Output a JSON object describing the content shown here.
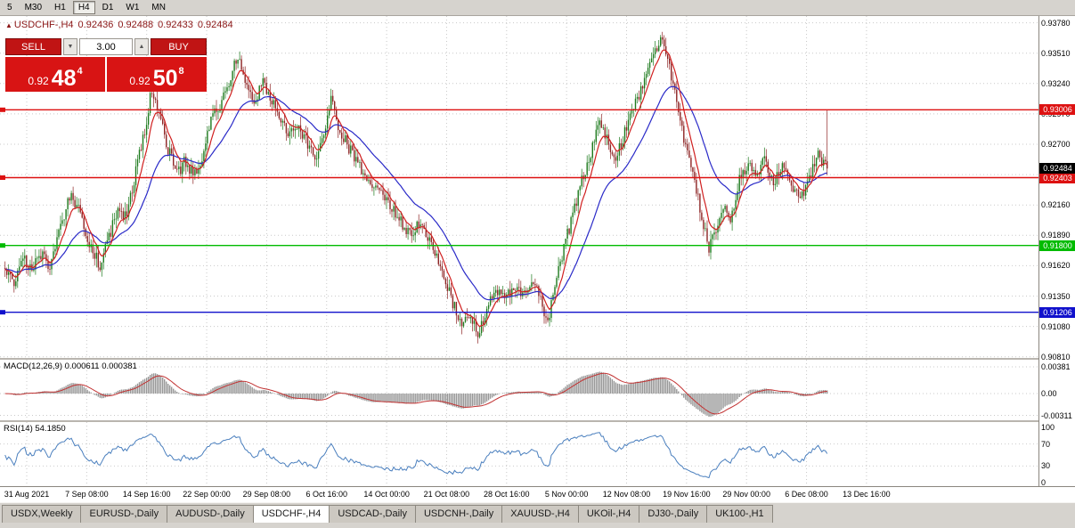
{
  "toolbar": {
    "timeframes": [
      {
        "label": "5",
        "active": false
      },
      {
        "label": "M30",
        "active": false
      },
      {
        "label": "H1",
        "active": false
      },
      {
        "label": "H4",
        "active": true
      },
      {
        "label": "D1",
        "active": false
      },
      {
        "label": "W1",
        "active": false
      },
      {
        "label": "MN",
        "active": false
      }
    ]
  },
  "chart_header": {
    "marker": "▲",
    "symbol": "USDCHF-,H4",
    "open": "0.92436",
    "high": "0.92488",
    "low": "0.92433",
    "close": "0.92484"
  },
  "trade_panel": {
    "sell_label": "SELL",
    "buy_label": "BUY",
    "volume": "3.00",
    "spinner_down": "▼",
    "spinner_up": "▲",
    "sell_price_small": "0.92",
    "sell_price_big": "48",
    "sell_price_sup": "4",
    "buy_price_small": "0.92",
    "buy_price_big": "50",
    "buy_price_sup": "8",
    "button_color": "#c01414",
    "price_color": "#d81414"
  },
  "chart_data": {
    "type": "candlestick",
    "symbol": "USDCHF",
    "timeframe": "H4",
    "price_axis": {
      "min": 0.908,
      "max": 0.9384,
      "ticks": [
        0.9378,
        0.9351,
        0.9324,
        0.9297,
        0.927,
        0.9243,
        0.9216,
        0.9189,
        0.9162,
        0.9135,
        0.9108,
        0.9081
      ]
    },
    "time_axis": {
      "labels": [
        "31 Aug 2021",
        "7 Sep 08:00",
        "14 Sep 16:00",
        "22 Sep 00:00",
        "29 Sep 08:00",
        "6 Oct 16:00",
        "14 Oct 00:00",
        "21 Oct 08:00",
        "28 Oct 16:00",
        "5 Nov 00:00",
        "12 Nov 08:00",
        "19 Nov 16:00",
        "29 Nov 00:00",
        "6 Dec 08:00",
        "13 Dec 16:00"
      ]
    },
    "hlines": [
      {
        "price": 0.93006,
        "label": "0.93006",
        "color": "#dd1111"
      },
      {
        "price": 0.92403,
        "label": "0.92403",
        "color": "#dd1111"
      },
      {
        "price": 0.918,
        "label": "0.91800",
        "color": "#00bb00"
      },
      {
        "price": 0.91206,
        "label": "0.91206",
        "color": "#1111cc"
      }
    ],
    "current_price": {
      "price": 0.92484,
      "label": "0.92484",
      "bg": "#000000"
    },
    "candles": {
      "count": 460,
      "up_color": "#1d7a1d",
      "down_color": "#8d2424",
      "last_high": 0.93,
      "anchors": [
        [
          0.0,
          0.916
        ],
        [
          0.011,
          0.9149
        ],
        [
          0.022,
          0.917
        ],
        [
          0.032,
          0.9158
        ],
        [
          0.043,
          0.9173
        ],
        [
          0.054,
          0.9163
        ],
        [
          0.065,
          0.919
        ],
        [
          0.079,
          0.9223
        ],
        [
          0.092,
          0.921
        ],
        [
          0.103,
          0.918
        ],
        [
          0.116,
          0.9162
        ],
        [
          0.126,
          0.9186
        ],
        [
          0.137,
          0.9212
        ],
        [
          0.148,
          0.9204
        ],
        [
          0.159,
          0.9247
        ],
        [
          0.17,
          0.9282
        ],
        [
          0.178,
          0.9318
        ],
        [
          0.187,
          0.9298
        ],
        [
          0.198,
          0.9266
        ],
        [
          0.209,
          0.9243
        ],
        [
          0.219,
          0.9256
        ],
        [
          0.23,
          0.9241
        ],
        [
          0.241,
          0.9262
        ],
        [
          0.252,
          0.9294
        ],
        [
          0.263,
          0.9308
        ],
        [
          0.274,
          0.933
        ],
        [
          0.283,
          0.9351
        ],
        [
          0.292,
          0.9321
        ],
        [
          0.303,
          0.9309
        ],
        [
          0.314,
          0.9324
        ],
        [
          0.324,
          0.9309
        ],
        [
          0.335,
          0.9291
        ],
        [
          0.346,
          0.928
        ],
        [
          0.357,
          0.9286
        ],
        [
          0.368,
          0.9271
        ],
        [
          0.378,
          0.9259
        ],
        [
          0.389,
          0.9276
        ],
        [
          0.397,
          0.9312
        ],
        [
          0.405,
          0.9286
        ],
        [
          0.416,
          0.927
        ],
        [
          0.427,
          0.9256
        ],
        [
          0.44,
          0.9241
        ],
        [
          0.453,
          0.923
        ],
        [
          0.466,
          0.9219
        ],
        [
          0.479,
          0.9203
        ],
        [
          0.492,
          0.9191
        ],
        [
          0.505,
          0.9199
        ],
        [
          0.518,
          0.9181
        ],
        [
          0.531,
          0.9161
        ],
        [
          0.544,
          0.9131
        ],
        [
          0.555,
          0.9106
        ],
        [
          0.565,
          0.9119
        ],
        [
          0.576,
          0.91
        ],
        [
          0.587,
          0.9126
        ],
        [
          0.598,
          0.9141
        ],
        [
          0.609,
          0.9131
        ],
        [
          0.619,
          0.9146
        ],
        [
          0.63,
          0.9136
        ],
        [
          0.641,
          0.9151
        ],
        [
          0.652,
          0.9136
        ],
        [
          0.659,
          0.911
        ],
        [
          0.67,
          0.9146
        ],
        [
          0.681,
          0.9181
        ],
        [
          0.692,
          0.9211
        ],
        [
          0.703,
          0.9241
        ],
        [
          0.714,
          0.9266
        ],
        [
          0.724,
          0.9291
        ],
        [
          0.733,
          0.9271
        ],
        [
          0.743,
          0.9256
        ],
        [
          0.754,
          0.9281
        ],
        [
          0.764,
          0.9301
        ],
        [
          0.775,
          0.9321
        ],
        [
          0.786,
          0.9341
        ],
        [
          0.797,
          0.9366
        ],
        [
          0.805,
          0.9346
        ],
        [
          0.814,
          0.9321
        ],
        [
          0.823,
          0.9286
        ],
        [
          0.831,
          0.9256
        ],
        [
          0.84,
          0.9231
        ],
        [
          0.849,
          0.9201
        ],
        [
          0.856,
          0.9176
        ],
        [
          0.865,
          0.9196
        ],
        [
          0.874,
          0.9216
        ],
        [
          0.882,
          0.9201
        ],
        [
          0.892,
          0.9236
        ],
        [
          0.903,
          0.9251
        ],
        [
          0.914,
          0.9241
        ],
        [
          0.924,
          0.9256
        ],
        [
          0.935,
          0.9236
        ],
        [
          0.946,
          0.9249
        ],
        [
          0.957,
          0.9231
        ],
        [
          0.968,
          0.9223
        ],
        [
          0.978,
          0.9241
        ],
        [
          0.989,
          0.9262
        ],
        [
          1.0,
          0.92484
        ]
      ]
    },
    "ma": [
      {
        "period": 32,
        "color": "#2a2ac8"
      },
      {
        "period": 8,
        "color": "#d02020"
      }
    ],
    "indicators": [
      {
        "name": "MACD",
        "label": "MACD(12,26,9) 0.000611 0.000381",
        "ticks": [
          "0.00381",
          "0.00",
          "-0.00311"
        ],
        "params": {
          "fast": 12,
          "slow": 26,
          "signal": 9
        },
        "histogram_color": "#979797",
        "signal_color": "#c23333"
      },
      {
        "name": "RSI",
        "label": "RSI(14) 54.1850",
        "ticks": [
          "100",
          "70",
          "30",
          "0"
        ],
        "levels": [
          70,
          30
        ],
        "period": 14,
        "line_color": "#4a7fbe"
      }
    ]
  },
  "tabs": {
    "items": [
      "USDX,Weekly",
      "EURUSD-,Daily",
      "AUDUSD-,Daily",
      "USDCHF-,H4",
      "USDCAD-,Daily",
      "USDCNH-,Daily",
      "XAUUSD-,H4",
      "UKOil-,H4",
      "DJ30-,Daily",
      "UK100-,H1"
    ],
    "active_index": 3
  }
}
